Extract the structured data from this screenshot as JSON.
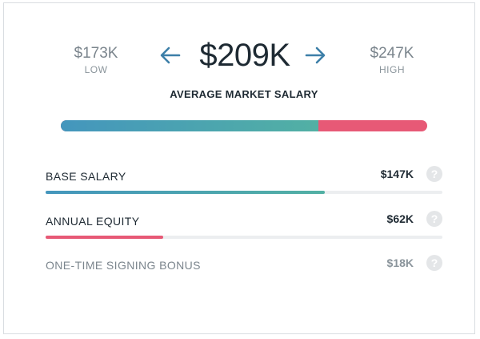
{
  "summary": {
    "low_value": "$173K",
    "low_label": "LOW",
    "average_value": "$209K",
    "average_label": "AVERAGE MARKET SALARY",
    "high_value": "$247K",
    "high_label": "HIGH",
    "base_share_percent": 70.3
  },
  "breakdown": [
    {
      "label": "BASE SALARY",
      "value": "$147K",
      "fill_percent": 70.3,
      "color": "#4fa6b0"
    },
    {
      "label": "ANNUAL EQUITY",
      "value": "$62K",
      "fill_percent": 29.7,
      "color": "#e75976"
    },
    {
      "label": "ONE-TIME SIGNING BONUS",
      "value": "$18K"
    }
  ],
  "icons": {
    "prev": "arrow-left-icon",
    "next": "arrow-right-icon",
    "help": "question-icon",
    "help_glyph": "?"
  },
  "colors": {
    "arrow": "#3d7fa8",
    "equity": "#e75976",
    "base_start": "#4496bd",
    "base_end": "#52b0a4"
  }
}
